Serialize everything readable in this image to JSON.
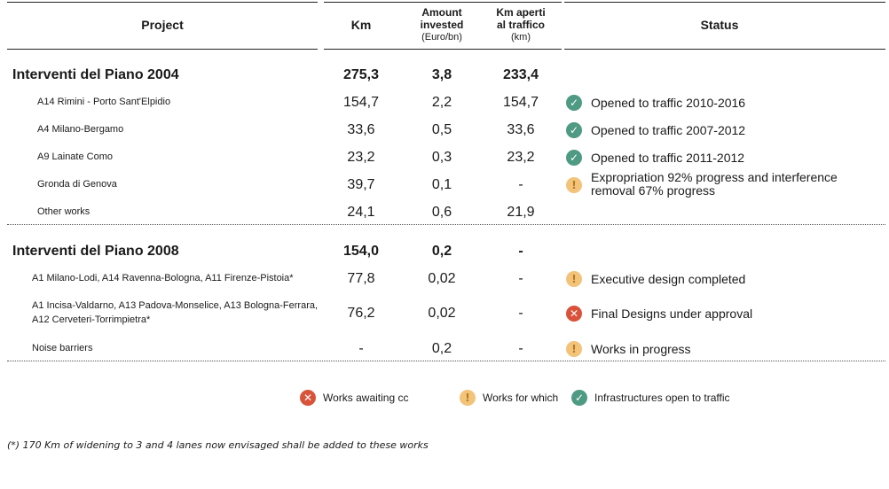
{
  "header": {
    "project": "Project",
    "km": "Km",
    "amount_line1": "Amount",
    "amount_line2": "invested",
    "amount_unit": "(Euro/bn)",
    "km_open_line1": "Km aperti",
    "km_open_line2": "al traffico",
    "km_open_unit": "(km)",
    "status": "Status"
  },
  "plan2004": {
    "title": "Interventi del Piano 2004",
    "km": "275,3",
    "amount": "3,8",
    "km_open": "233,4",
    "rows": [
      {
        "name": "A14 Rimini - Porto Sant'Elpidio",
        "km": "154,7",
        "amount": "2,2",
        "km_open": "154,7",
        "status": "Opened to traffic 2010-2016",
        "icon": "check-icon"
      },
      {
        "name": "A4 Milano-Bergamo",
        "km": "33,6",
        "amount": "0,5",
        "km_open": "33,6",
        "status": "Opened to traffic 2007-2012",
        "icon": "check-icon"
      },
      {
        "name": "A9 Lainate Como",
        "km": "23,2",
        "amount": "0,3",
        "km_open": "23,2",
        "status": "Opened to traffic 2011-2012",
        "icon": "check-icon"
      },
      {
        "name": "Gronda di Genova",
        "km": "39,7",
        "amount": "0,1",
        "km_open": "-",
        "status": "Expropriation 92% progress and interference removal 67% progress",
        "icon": "exclamation-icon"
      },
      {
        "name": "Other works",
        "km": "24,1",
        "amount": "0,6",
        "km_open": "21,9",
        "status": "",
        "icon": ""
      }
    ]
  },
  "plan2008": {
    "title": "Interventi del Piano 2008",
    "km": "154,0",
    "amount": "0,2",
    "km_open": "-",
    "rows": [
      {
        "name": "A1 Milano-Lodi, A14 Ravenna-Bologna, A11 Firenze-Pistoia*",
        "km": "77,8",
        "amount": "0,02",
        "km_open": "-",
        "status": "Executive design completed",
        "icon": "exclamation-icon"
      },
      {
        "name_line1": "A1 Incisa-Valdarno, A13 Padova-Monselice, A13 Bologna-Ferrara,",
        "name_line2": "A12 Cerveteri-Torrimpietra*",
        "km": "76,2",
        "amount": "0,02",
        "km_open": "-",
        "status": "Final Designs under approval",
        "icon": "cross-icon"
      },
      {
        "name": "Noise barriers",
        "km": "-",
        "amount": "0,2",
        "km_open": "-",
        "status": "Works in progress",
        "icon": "exclamation-icon"
      }
    ]
  },
  "legend": {
    "awaiting": "Works awaiting cc",
    "for_which": "Works for which",
    "open": "Infrastructures open to traffic"
  },
  "footnote": "(*) 170 Km of widening to 3 and 4 lanes now envisaged shall be added to these works",
  "colors": {
    "green": "#4f9a83",
    "orange": "#f3c37a",
    "red": "#d9533a"
  }
}
